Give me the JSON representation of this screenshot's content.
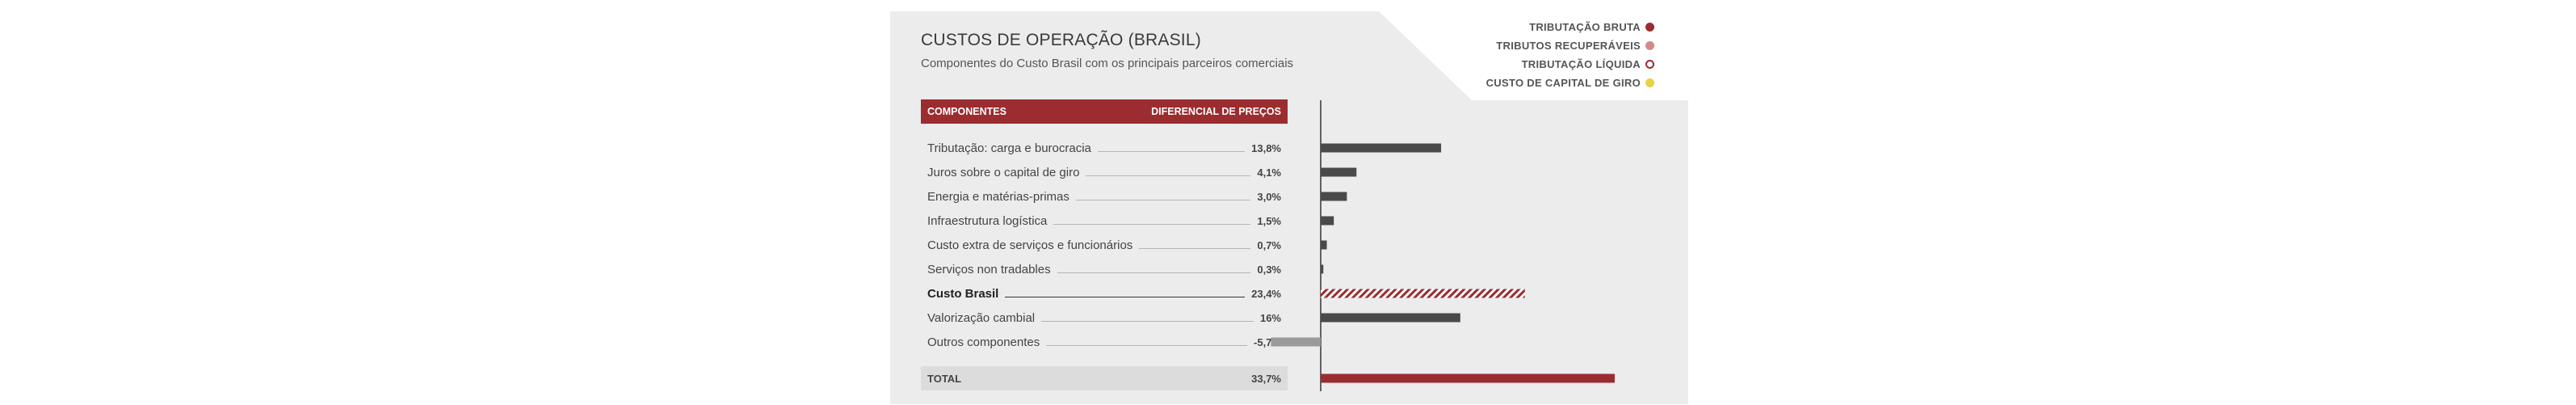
{
  "chart_data": {
    "type": "bar",
    "title": "CUSTOS DE OPERAÇÃO (BRASIL)",
    "subtitle": "Componentes do Custo Brasil com os principais parceiros comerciais",
    "table_header": {
      "left": "COMPONENTES",
      "right": "DIFERENCIAL DE PREÇOS"
    },
    "categories": [
      "Tributação: carga e burocracia",
      "Juros sobre o capital de giro",
      "Energia e matérias-primas",
      "Infraestrutura logística",
      "Custo extra de serviços e funcionários",
      "Serviços non tradables",
      "Custo Brasil",
      "Valorização cambial",
      "Outros componentes"
    ],
    "labels": [
      "13,8%",
      "4,1%",
      "3,0%",
      "1,5%",
      "0,7%",
      "0,3%",
      "23,4%",
      "16%",
      "-5,7%"
    ],
    "values": [
      13.8,
      4.1,
      3.0,
      1.5,
      0.7,
      0.3,
      23.4,
      16.0,
      -5.7
    ],
    "bold_rows": [
      6
    ],
    "bar_styles": [
      "solid",
      "solid",
      "solid",
      "solid",
      "solid",
      "solid",
      "hatched",
      "solid",
      "light"
    ],
    "total": {
      "label": "TOTAL",
      "value_label": "33,7%",
      "value": 33.7
    },
    "legend": [
      {
        "name": "TRIBUTAÇÃO BRUTA",
        "color": "#9b2c2f",
        "style": "filled"
      },
      {
        "name": "TRIBUTOS RECUPERÁVEIS",
        "color": "#d48a8a",
        "style": "filled"
      },
      {
        "name": "TRIBUTAÇÃO LÍQUIDA",
        "color": "#9b2c2f",
        "style": "ring"
      },
      {
        "name": "CUSTO DE CAPITAL DE GIRO",
        "color": "#e8d246",
        "style": "filled"
      }
    ],
    "colors": {
      "accent": "#9b2c2f",
      "bar": "#4a4a4a",
      "negative_bar": "#9a9a9a",
      "panel": "#ececec",
      "total_row": "#dcdcdc"
    },
    "xlim": [
      -5.7,
      33.7
    ],
    "grid": false
  }
}
